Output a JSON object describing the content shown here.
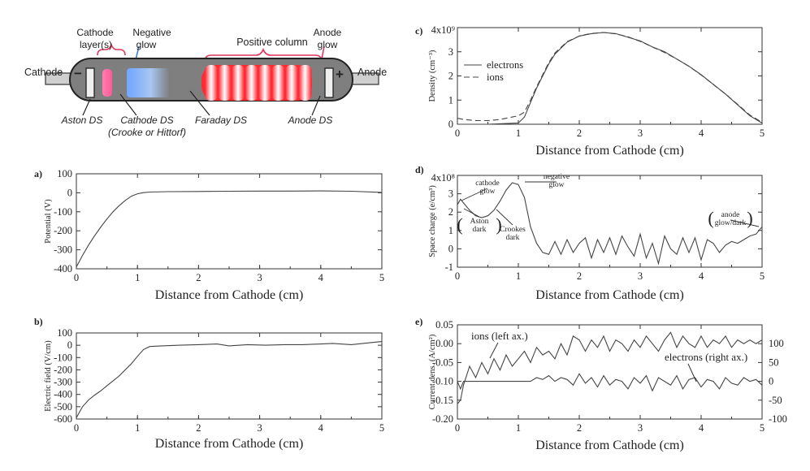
{
  "diagram": {
    "labels": {
      "cathode_layers": "Cathode layer(s)",
      "negative_glow": "Negative glow",
      "positive_column": "Positive column",
      "anode_glow": "Anode glow",
      "cathode": "Cathode",
      "anode": "Anode",
      "aston_ds": "Aston DS",
      "cathode_ds": "Cathode DS",
      "crooke_hittorf": "(Crooke or Hittorf)",
      "faraday_ds": "Faraday DS",
      "anode_ds": "Anode DS",
      "minus_sign": "−",
      "plus_sign": "+"
    }
  },
  "chart_data": [
    {
      "id": "a",
      "panel_label": "a)",
      "type": "line",
      "xlabel": "Distance from Cathode (cm)",
      "ylabel": "Potential (V)",
      "xlim": [
        0,
        5
      ],
      "ylim": [
        -400,
        100
      ],
      "xticks": [
        0,
        1,
        2,
        3,
        4,
        5
      ],
      "yticks": [
        -400,
        -300,
        -200,
        -100,
        0,
        100
      ],
      "series": [
        {
          "x": [
            0,
            0.1,
            0.2,
            0.3,
            0.4,
            0.5,
            0.6,
            0.7,
            0.8,
            0.9,
            1.0,
            1.1,
            1.2,
            1.5,
            2,
            2.5,
            3,
            3.5,
            4,
            4.5,
            5
          ],
          "y": [
            -390,
            -330,
            -275,
            -225,
            -180,
            -138,
            -100,
            -68,
            -40,
            -18,
            -5,
            1,
            4,
            6,
            7,
            8,
            9,
            9,
            10,
            8,
            2
          ]
        }
      ]
    },
    {
      "id": "b",
      "panel_label": "b)",
      "type": "line",
      "xlabel": "Distance from Cathode (cm)",
      "ylabel": "Electric field (V/cm)",
      "xlim": [
        0,
        5
      ],
      "ylim": [
        -600,
        100
      ],
      "xticks": [
        0,
        1,
        2,
        3,
        4,
        5
      ],
      "yticks": [
        -600,
        -500,
        -400,
        -300,
        -200,
        -100,
        0,
        100
      ],
      "series": [
        {
          "x": [
            0,
            0.1,
            0.2,
            0.3,
            0.4,
            0.5,
            0.6,
            0.7,
            0.8,
            0.9,
            1.0,
            1.1,
            1.2,
            1.4,
            1.7,
            2.0,
            2.3,
            2.5,
            2.8,
            3.1,
            3.4,
            3.7,
            4.0,
            4.2,
            4.5,
            4.8,
            5.0
          ],
          "y": [
            -590,
            -500,
            -445,
            -405,
            -370,
            -330,
            -290,
            -250,
            -200,
            -150,
            -90,
            -35,
            -10,
            -5,
            0,
            5,
            10,
            -5,
            5,
            0,
            5,
            5,
            10,
            15,
            5,
            20,
            30
          ]
        }
      ]
    },
    {
      "id": "c",
      "panel_label": "c)",
      "type": "line",
      "xlabel": "Distance from Cathode (cm)",
      "ylabel": "Density (cm⁻³)",
      "ytop_label": "4x10⁹",
      "xlim": [
        0,
        5
      ],
      "ylim": [
        0,
        4
      ],
      "xticks": [
        0,
        1,
        2,
        3,
        4,
        5
      ],
      "yticks": [
        0,
        1,
        2,
        3
      ],
      "legend": "top-left",
      "series": [
        {
          "name": "electrons",
          "style": "solid",
          "x": [
            0,
            0.5,
            1.0,
            1.1,
            1.2,
            1.3,
            1.4,
            1.5,
            1.6,
            1.8,
            2.0,
            2.2,
            2.4,
            2.6,
            2.8,
            3.0,
            3.2,
            3.4,
            3.6,
            3.8,
            4.0,
            4.2,
            4.4,
            4.6,
            4.8,
            5.0
          ],
          "y": [
            0,
            0,
            0.05,
            0.3,
            0.9,
            1.5,
            2.0,
            2.5,
            2.9,
            3.4,
            3.65,
            3.75,
            3.8,
            3.75,
            3.6,
            3.45,
            3.2,
            3.0,
            2.7,
            2.4,
            2.05,
            1.65,
            1.25,
            0.8,
            0.35,
            0.05
          ]
        },
        {
          "name": "ions",
          "style": "dashed",
          "x": [
            0,
            0.1,
            0.3,
            0.5,
            0.7,
            0.9,
            1.0,
            1.1,
            1.2,
            1.3,
            1.4,
            1.5,
            1.6,
            1.8,
            2.0,
            2.2,
            2.4,
            2.6,
            2.8,
            3.0,
            3.2,
            3.4,
            3.6,
            3.8,
            4.0,
            4.2,
            4.4,
            4.6,
            4.8,
            5.0
          ],
          "y": [
            0.25,
            0.2,
            0.15,
            0.15,
            0.2,
            0.3,
            0.35,
            0.5,
            1.0,
            1.55,
            2.05,
            2.55,
            2.95,
            3.42,
            3.65,
            3.76,
            3.8,
            3.74,
            3.62,
            3.43,
            3.2,
            2.97,
            2.7,
            2.4,
            2.04,
            1.65,
            1.25,
            0.82,
            0.38,
            0.08
          ]
        }
      ]
    },
    {
      "id": "d",
      "panel_label": "d)",
      "type": "line",
      "xlabel": "Distance from Cathode (cm)",
      "ylabel": "Space charge (e/cm³)",
      "ytop_label": "4x10⁸",
      "xlim": [
        0,
        5
      ],
      "ylim": [
        -1,
        4
      ],
      "xticks": [
        0,
        1,
        2,
        3,
        4,
        5
      ],
      "yticks": [
        -1,
        0,
        1,
        2,
        3
      ],
      "annotations": [
        {
          "text": [
            "cathode",
            "glow"
          ]
        },
        {
          "text": [
            "negative",
            "glow"
          ]
        },
        {
          "text": [
            "Aston",
            "dark"
          ]
        },
        {
          "text": [
            "Crookes",
            "dark"
          ]
        },
        {
          "text": [
            "anode",
            "glow/dark"
          ]
        }
      ],
      "series": [
        {
          "x": [
            0,
            0.05,
            0.1,
            0.2,
            0.3,
            0.4,
            0.5,
            0.6,
            0.7,
            0.8,
            0.9,
            1.0,
            1.1,
            1.2,
            1.3,
            1.4,
            1.5,
            1.6,
            1.7,
            1.8,
            1.9,
            2.0,
            2.1,
            2.2,
            2.3,
            2.4,
            2.5,
            2.6,
            2.7,
            2.8,
            2.9,
            3.0,
            3.1,
            3.2,
            3.3,
            3.4,
            3.5,
            3.6,
            3.7,
            3.8,
            3.9,
            4.0,
            4.1,
            4.2,
            4.3,
            4.4,
            4.5,
            4.6,
            4.7,
            4.8,
            4.9,
            5.0
          ],
          "y": [
            2.4,
            2.7,
            2.5,
            2.1,
            1.8,
            1.7,
            1.8,
            2.1,
            2.6,
            3.2,
            3.6,
            3.5,
            2.8,
            1.2,
            0.3,
            -0.2,
            -0.3,
            0.4,
            -0.3,
            0.5,
            -0.2,
            0.3,
            0.6,
            -0.5,
            0.5,
            -0.2,
            0.6,
            -0.3,
            0.7,
            0.1,
            -0.4,
            0.8,
            -0.5,
            0.3,
            -0.8,
            0.7,
            0.0,
            -0.3,
            0.6,
            -0.2,
            0.6,
            -0.6,
            0.5,
            0.3,
            -0.2,
            0.2,
            0.4,
            0.3,
            0.5,
            0.7,
            0.8,
            1.2
          ]
        }
      ]
    },
    {
      "id": "e",
      "panel_label": "e)",
      "type": "line",
      "xlabel": "Distance from Cathode (cm)",
      "ylabel": "Current dens. (A/cm²)",
      "xlim": [
        0,
        5
      ],
      "ylim": [
        -0.2,
        0.05
      ],
      "y2lim": [
        -100,
        150
      ],
      "xticks": [
        0,
        1,
        2,
        3,
        4,
        5
      ],
      "yticks": [
        -0.2,
        -0.15,
        -0.1,
        -0.05,
        0.0,
        0.05
      ],
      "ytick_labels": [
        "-0.20",
        "-0.15",
        "-0.10",
        "-0.05",
        "0.00",
        "0.05"
      ],
      "y2ticks": [
        -100,
        -50,
        0,
        50,
        100
      ],
      "annotations": [
        {
          "text": "ions (left ax.)"
        },
        {
          "text": "electrons (right ax.)"
        }
      ],
      "series": [
        {
          "name": "ions",
          "axis": "left",
          "x": [
            0,
            0.05,
            0.1,
            0.2,
            0.3,
            0.4,
            0.5,
            0.6,
            0.7,
            0.8,
            0.9,
            1.0,
            1.1,
            1.2,
            1.3,
            1.4,
            1.5,
            1.6,
            1.7,
            1.8,
            1.9,
            2.0,
            2.1,
            2.2,
            2.3,
            2.4,
            2.5,
            2.6,
            2.7,
            2.8,
            2.9,
            3.0,
            3.1,
            3.2,
            3.3,
            3.4,
            3.5,
            3.6,
            3.7,
            3.8,
            3.9,
            4.0,
            4.1,
            4.2,
            4.3,
            4.4,
            4.5,
            4.6,
            4.7,
            4.8,
            4.9,
            5.0
          ],
          "y": [
            -0.16,
            -0.15,
            -0.11,
            -0.06,
            -0.09,
            -0.05,
            -0.08,
            -0.04,
            -0.07,
            -0.03,
            -0.06,
            -0.04,
            -0.02,
            -0.05,
            -0.01,
            -0.03,
            -0.02,
            -0.04,
            0.0,
            -0.03,
            0.02,
            0.01,
            -0.02,
            0.01,
            -0.01,
            0.02,
            -0.02,
            0.01,
            0.0,
            -0.02,
            0.01,
            -0.01,
            0.02,
            0.0,
            -0.02,
            0.01,
            0.03,
            -0.01,
            0.02,
            0.0,
            -0.01,
            0.02,
            -0.01,
            0.01,
            0.0,
            0.02,
            -0.01,
            0.01,
            0.0,
            0.01,
            0.0,
            0.01
          ]
        },
        {
          "name": "electrons",
          "axis": "right",
          "x": [
            0,
            0.05,
            0.1,
            0.2,
            0.3,
            0.4,
            0.5,
            0.6,
            0.7,
            0.8,
            0.9,
            1.0,
            1.1,
            1.2,
            1.3,
            1.4,
            1.5,
            1.6,
            1.7,
            1.8,
            1.9,
            2.0,
            2.1,
            2.2,
            2.3,
            2.4,
            2.5,
            2.6,
            2.7,
            2.8,
            2.9,
            3.0,
            3.1,
            3.2,
            3.3,
            3.4,
            3.5,
            3.6,
            3.7,
            3.8,
            3.9,
            4.0,
            4.1,
            4.2,
            4.3,
            4.4,
            4.5,
            4.6,
            4.7,
            4.8,
            4.9,
            5.0
          ],
          "y": [
            0,
            -20,
            0,
            0,
            0,
            0,
            0,
            0,
            0,
            0,
            0,
            0,
            0,
            0,
            10,
            5,
            15,
            0,
            10,
            5,
            -10,
            20,
            -5,
            10,
            -15,
            15,
            -10,
            5,
            0,
            -20,
            10,
            -5,
            15,
            -25,
            10,
            0,
            -10,
            15,
            -20,
            5,
            10,
            -15,
            5,
            0,
            -20,
            10,
            -5,
            -10,
            10,
            0,
            5,
            -10
          ]
        }
      ]
    }
  ]
}
